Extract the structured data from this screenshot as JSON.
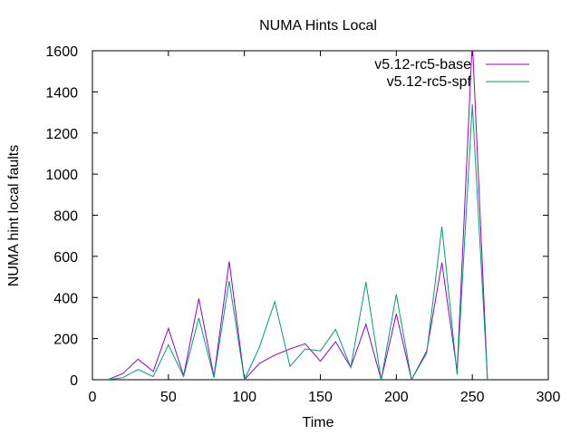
{
  "chart_data": {
    "type": "line",
    "title": "NUMA Hints Local",
    "xlabel": "Time",
    "ylabel": "NUMA hint local faults",
    "xlim": [
      0,
      300
    ],
    "ylim": [
      0,
      1600
    ],
    "x_ticks": [
      0,
      50,
      100,
      150,
      200,
      250,
      300
    ],
    "y_ticks": [
      0,
      200,
      400,
      600,
      800,
      1000,
      1200,
      1400,
      1600
    ],
    "grid": false,
    "legend_position": "top-right",
    "series": [
      {
        "name": "v5.12-rc5-base",
        "color": "#9400d3",
        "x": [
          10,
          20,
          30,
          40,
          50,
          60,
          70,
          80,
          90,
          100,
          110,
          120,
          130,
          140,
          150,
          160,
          170,
          180,
          190,
          200,
          210,
          220,
          230,
          240,
          250,
          260
        ],
        "y": [
          0,
          30,
          100,
          40,
          250,
          20,
          395,
          15,
          575,
          0,
          80,
          120,
          150,
          175,
          90,
          185,
          60,
          270,
          0,
          320,
          0,
          140,
          570,
          40,
          1650,
          0
        ]
      },
      {
        "name": "v5.12-rc5-spf",
        "color": "#009e73",
        "x": [
          10,
          20,
          30,
          40,
          50,
          60,
          70,
          80,
          90,
          100,
          110,
          120,
          130,
          140,
          150,
          160,
          170,
          180,
          190,
          200,
          210,
          220,
          230,
          240,
          250,
          260
        ],
        "y": [
          0,
          10,
          50,
          15,
          170,
          15,
          300,
          10,
          480,
          0,
          160,
          380,
          65,
          150,
          140,
          245,
          60,
          475,
          0,
          415,
          0,
          130,
          745,
          25,
          1340,
          0
        ]
      }
    ]
  }
}
